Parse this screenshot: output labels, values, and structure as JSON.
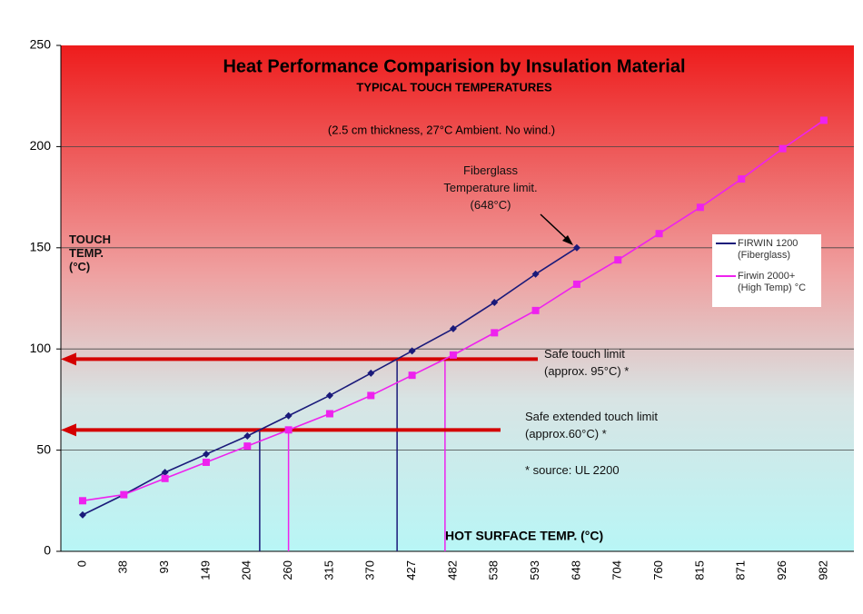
{
  "chart_data": {
    "type": "line",
    "title": "Heat Performance Comparision by Insulation Material",
    "subtitle": "TYPICAL TOUCH TEMPERATURES",
    "note": "(2.5 cm thickness, 27°C Ambient. No wind.)",
    "x_label": "HOT SURFACE TEMP. (°C)",
    "y_label": "TOUCH TEMP. (°C)",
    "annotations": [
      "Fiberglass Temperature limit. (648°C)",
      "* source: UL 2200"
    ],
    "categories": [
      "0",
      "38",
      "93",
      "149",
      "204",
      "260",
      "315",
      "370",
      "427",
      "482",
      "538",
      "593",
      "648",
      "704",
      "760",
      "815",
      "871",
      "926",
      "982"
    ],
    "series": [
      {
        "name": "FIRWIN 1200 (Fiberglass)",
        "color": "#1a1a7a",
        "marker": "diamond",
        "values": [
          18,
          28,
          39,
          48,
          57,
          67,
          77,
          88,
          99,
          110,
          123,
          137,
          150,
          null,
          null,
          null,
          null,
          null,
          null
        ]
      },
      {
        "name": "Firwin 2000+ (High Temp) °C",
        "color": "#ee22ee",
        "marker": "square",
        "values": [
          25,
          28,
          36,
          44,
          52,
          60,
          68,
          77,
          87,
          97,
          108,
          119,
          132,
          144,
          157,
          170,
          184,
          199,
          213
        ]
      }
    ],
    "thresholds": [
      {
        "value": 95,
        "label": "Safe touch limit (approx. 95°C) *",
        "color": "#d40000"
      },
      {
        "value": 60,
        "label": "Safe extended touch limit (approx.60°C) *",
        "color": "#d40000"
      }
    ],
    "ylim": [
      0,
      250
    ],
    "yticks": [
      0,
      50,
      100,
      150,
      200,
      250
    ],
    "grid": true
  }
}
